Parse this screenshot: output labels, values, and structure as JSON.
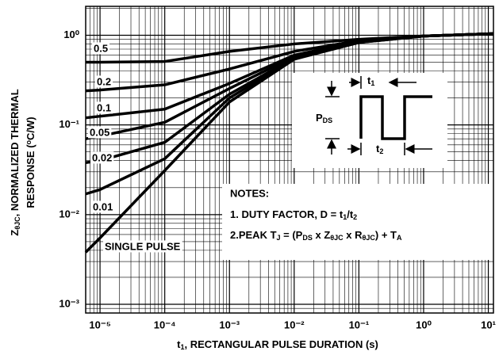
{
  "chart_data": {
    "type": "line",
    "x_label": [
      {
        "text": "t"
      },
      {
        "text": "1",
        "shift": "sub"
      },
      {
        "text": ", RECTANGULAR PULSE DURATION (s)"
      }
    ],
    "y_label": [
      [
        {
          "text": "Z"
        },
        {
          "text": "θJC",
          "shift": "sub"
        },
        {
          "text": ",  NORMALIZED THERMAL"
        }
      ],
      [
        {
          "text": "RESPONSE ("
        },
        {
          "text": "o",
          "shift": "sup"
        },
        {
          "text": "C/W)"
        }
      ]
    ],
    "log_x": true,
    "log_y": true,
    "grid": true,
    "xlim": [
      6e-06,
      12
    ],
    "ylim": [
      0.0008,
      2.1
    ],
    "xticks": [
      {
        "value": 1e-05,
        "label": "10⁻⁵"
      },
      {
        "value": 0.0001,
        "label": "10⁻⁴"
      },
      {
        "value": 0.001,
        "label": "10⁻³"
      },
      {
        "value": 0.01,
        "label": "10⁻²"
      },
      {
        "value": 0.1,
        "label": "10⁻¹"
      },
      {
        "value": 1,
        "label": "10⁰"
      },
      {
        "value": 10,
        "label": "10¹"
      }
    ],
    "yticks": [
      {
        "value": 0.001,
        "label": "10⁻³"
      },
      {
        "value": 0.01,
        "label": "10⁻²"
      },
      {
        "value": 0.1,
        "label": "10⁻¹"
      },
      {
        "value": 1,
        "label": "10⁰"
      }
    ],
    "x": [
      6e-06,
      1e-05,
      0.0001,
      0.001,
      0.01,
      0.1,
      1,
      12
    ],
    "series": [
      {
        "name": "0.5",
        "color": "#000000",
        "values": [
          0.5,
          0.5,
          0.51,
          0.66,
          0.8,
          0.9,
          0.98,
          1.04
        ]
      },
      {
        "name": "0.2",
        "color": "#000000",
        "values": [
          0.24,
          0.245,
          0.28,
          0.42,
          0.66,
          0.87,
          0.98,
          1.04
        ]
      },
      {
        "name": "0.1",
        "color": "#000000",
        "values": [
          0.12,
          0.125,
          0.15,
          0.29,
          0.6,
          0.85,
          0.98,
          1.04
        ]
      },
      {
        "name": "0.05",
        "color": "#000000",
        "values": [
          0.07,
          0.075,
          0.107,
          0.255,
          0.58,
          0.84,
          0.98,
          1.04
        ]
      },
      {
        "name": "0.02",
        "color": "#000000",
        "values": [
          0.038,
          0.04,
          0.064,
          0.22,
          0.56,
          0.84,
          0.98,
          1.04
        ]
      },
      {
        "name": "0.01",
        "color": "#000000",
        "values": [
          0.017,
          0.019,
          0.042,
          0.2,
          0.55,
          0.83,
          0.98,
          1.04
        ]
      },
      {
        "name": "SINGLE PULSE",
        "color": "#000000",
        "values": [
          0.0038,
          0.0055,
          0.031,
          0.18,
          0.54,
          0.83,
          0.98,
          1.04
        ]
      }
    ],
    "notes": {
      "title": "NOTES:",
      "lines": [
        [
          {
            "text": "1. DUTY FACTOR, D = t"
          },
          {
            "text": "1",
            "shift": "sub"
          },
          {
            "text": "/t"
          },
          {
            "text": "2",
            "shift": "sub"
          }
        ],
        [
          {
            "text": "2.PEAK T"
          },
          {
            "text": "J",
            "shift": "sub"
          },
          {
            "text": " = (P"
          },
          {
            "text": "DS",
            "shift": "sub"
          },
          {
            "text": " x Z"
          },
          {
            "text": "θJC",
            "shift": "sub"
          },
          {
            "text": " x R"
          },
          {
            "text": "θJC",
            "shift": "sub"
          },
          {
            "text": ") + T"
          },
          {
            "text": "A",
            "shift": "sub"
          }
        ]
      ]
    },
    "inset": {
      "pds": [
        {
          "text": "P"
        },
        {
          "text": "DS",
          "shift": "sub"
        }
      ],
      "t1": [
        {
          "text": "t"
        },
        {
          "text": "1",
          "shift": "sub"
        }
      ],
      "t2": [
        {
          "text": "t"
        },
        {
          "text": "2",
          "shift": "sub"
        }
      ]
    }
  }
}
